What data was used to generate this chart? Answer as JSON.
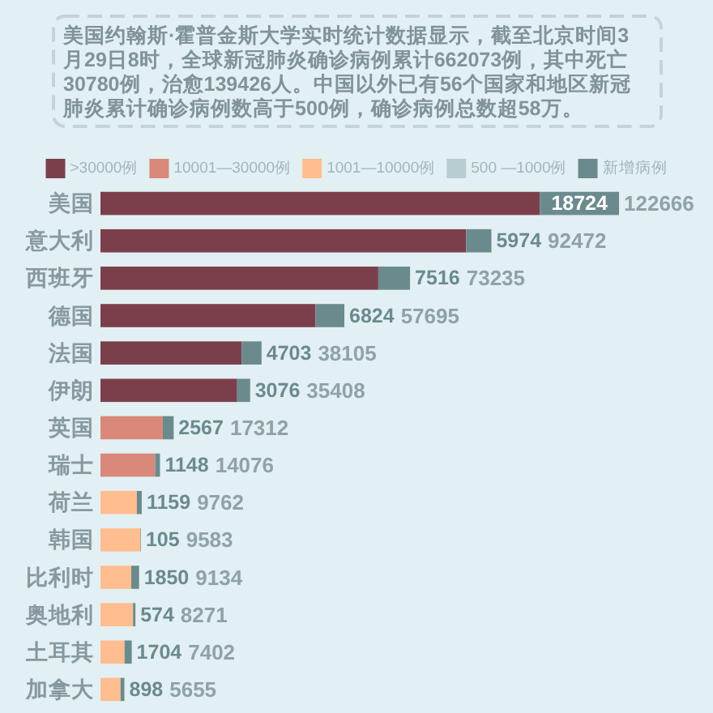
{
  "chart_data": {
    "type": "bar",
    "orientation": "horizontal",
    "stacked": true,
    "subtitle": "美国约翰斯·霍普金斯大学实时统计数据显示，截至北京时间3月29日8时，全球新冠肺炎确诊病例累计662073例，其中死亡30780例，治愈139426人。中国以外已有56个国家和地区新冠肺炎累计确诊病例数高于500例，确诊病例总数超58万。",
    "categories": [
      "美国",
      "意大利",
      "西班牙",
      "德国",
      "法国",
      "伊朗",
      "英国",
      "瑞士",
      "荷兰",
      "韩国",
      "比利时",
      "奥地利",
      "土耳其",
      "加拿大"
    ],
    "series": [
      {
        "name": ">30000例",
        "color": "#7b3f4c",
        "values": [
          103942,
          86498,
          65719,
          50871,
          33402,
          32332,
          null,
          null,
          null,
          null,
          null,
          null,
          null,
          null
        ]
      },
      {
        "name": "10001—30000例",
        "color": "#d9887a",
        "values": [
          null,
          null,
          null,
          null,
          null,
          null,
          14745,
          12928,
          null,
          null,
          null,
          null,
          null,
          null
        ]
      },
      {
        "name": "1001—10000例",
        "color": "#ffbd90",
        "values": [
          null,
          null,
          null,
          null,
          null,
          null,
          null,
          null,
          8603,
          9478,
          7284,
          7697,
          5698,
          4757
        ]
      },
      {
        "name": "500 —1000例",
        "color": "#b8cdd2",
        "values": [
          null,
          null,
          null,
          null,
          null,
          null,
          null,
          null,
          null,
          null,
          null,
          null,
          null,
          null
        ]
      },
      {
        "name": "新增病例",
        "color": "#6b8a8e",
        "values": [
          18724,
          5974,
          7516,
          6824,
          4703,
          3076,
          2567,
          1148,
          1159,
          105,
          1850,
          574,
          1704,
          898
        ],
        "value_labels": [
          "18724",
          "5974",
          "7516",
          "6824",
          "4703",
          "3076",
          "2567",
          "1148",
          "1159",
          "105",
          "1850",
          "574",
          "1704",
          "898"
        ]
      }
    ],
    "totals": [
      "122666",
      "92472",
      "73235",
      "57695",
      "38105",
      "35408",
      "17312",
      "14076",
      "9762",
      "9583",
      "9134",
      "8271",
      "7402",
      "5655"
    ],
    "legend": "top",
    "tick_labels": "y"
  }
}
